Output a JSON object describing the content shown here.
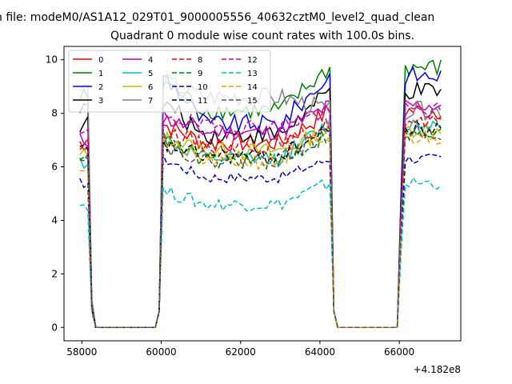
{
  "figure": {
    "suptitle": "n file: modeM0/AS1A12_029T01_9000005556_40632cztM0_level2_quad_clean",
    "title": "Quadrant 0 module wise count rates with 100.0s bins.",
    "offset_label": "+4.182e8"
  },
  "chart_data": {
    "type": "line",
    "title": "Quadrant 0 module wise count rates with 100.0s bins.",
    "xlabel": "",
    "ylabel": "",
    "x_offset": 418200000,
    "xlim": [
      57550,
      67550
    ],
    "ylim": [
      -0.5,
      10.5
    ],
    "xticks": [
      58000,
      60000,
      62000,
      64000,
      66000
    ],
    "yticks": [
      0,
      2,
      4,
      6,
      8,
      10
    ],
    "grid": false,
    "legend": {
      "placement": "upper-left",
      "columns": 4
    },
    "segments": [
      {
        "start": 57950,
        "end": 58150,
        "drop": [
          58250,
          58350
        ],
        "floor": [
          58350,
          59850
        ]
      },
      {
        "start": 60050,
        "end": 64250,
        "rise": [
          59850,
          59950
        ],
        "drop": [
          64350,
          64450
        ]
      },
      {
        "start": 66150,
        "end": 67050,
        "floor": [
          64450,
          65950
        ],
        "rise": [
          65950,
          66050
        ]
      }
    ],
    "series": [
      {
        "name": "0",
        "color": "#ff0000",
        "dash": "solid",
        "alpha": 1.0,
        "levels": [
          6.9,
          7.6,
          6.9,
          8.1
        ],
        "noise": 0.35
      },
      {
        "name": "1",
        "color": "#008000",
        "dash": "solid",
        "alpha": 1.0,
        "levels": [
          8.6,
          9.2,
          8.1,
          9.7
        ],
        "noise": 0.35
      },
      {
        "name": "2",
        "color": "#0000ff",
        "dash": "solid",
        "alpha": 1.0,
        "levels": [
          8.2,
          9.5,
          7.6,
          9.4
        ],
        "noise": 0.35
      },
      {
        "name": "3",
        "color": "#000000",
        "dash": "solid",
        "alpha": 1.0,
        "levels": [
          7.6,
          8.4,
          7.2,
          8.8
        ],
        "noise": 0.35
      },
      {
        "name": "4",
        "color": "#bf00bf",
        "dash": "solid",
        "alpha": 1.0,
        "levels": [
          7.0,
          7.8,
          7.3,
          8.3
        ],
        "noise": 0.3
      },
      {
        "name": "5",
        "color": "#00bfbf",
        "dash": "solid",
        "alpha": 1.0,
        "levels": [
          6.2,
          7.0,
          6.3,
          7.6
        ],
        "noise": 0.3
      },
      {
        "name": "6",
        "color": "#bfbf00",
        "dash": "solid",
        "alpha": 1.0,
        "levels": [
          6.4,
          7.1,
          6.6,
          7.4
        ],
        "noise": 0.3
      },
      {
        "name": "7",
        "color": "#808080",
        "dash": "solid",
        "alpha": 1.0,
        "levels": [
          8.9,
          9.2,
          8.6,
          8.1
        ],
        "noise": 0.35
      },
      {
        "name": "8",
        "color": "#ff0000",
        "dash": "dashed",
        "alpha": 1.0,
        "levels": [
          6.8,
          7.4,
          6.8,
          7.6
        ],
        "noise": 0.3
      },
      {
        "name": "9",
        "color": "#008000",
        "dash": "dashed",
        "alpha": 1.0,
        "levels": [
          6.5,
          7.1,
          6.2,
          7.2
        ],
        "noise": 0.3
      },
      {
        "name": "10",
        "color": "#0000bf",
        "dash": "dashed",
        "alpha": 1.0,
        "levels": [
          5.4,
          6.3,
          5.6,
          6.3
        ],
        "noise": 0.2
      },
      {
        "name": "11",
        "color": "#000000",
        "dash": "dashed",
        "alpha": 1.0,
        "levels": [
          6.6,
          6.8,
          6.4,
          7.4
        ],
        "noise": 0.3
      },
      {
        "name": "12",
        "color": "#bf00bf",
        "dash": "dashed",
        "alpha": 1.0,
        "levels": [
          7.2,
          8.0,
          7.5,
          8.1
        ],
        "noise": 0.3
      },
      {
        "name": "13",
        "color": "#00bfbf",
        "dash": "dashed",
        "alpha": 1.0,
        "levels": [
          4.6,
          5.1,
          4.6,
          5.4
        ],
        "noise": 0.25
      },
      {
        "name": "14",
        "color": "#e8a000",
        "dash": "dashed",
        "alpha": 1.0,
        "levels": [
          6.0,
          6.9,
          6.2,
          7.1
        ],
        "noise": 0.3
      },
      {
        "name": "15",
        "color": "#555555",
        "dash": "dashed",
        "alpha": 1.0,
        "levels": [
          6.5,
          6.8,
          6.3,
          7.3
        ],
        "noise": 0.3
      }
    ]
  }
}
